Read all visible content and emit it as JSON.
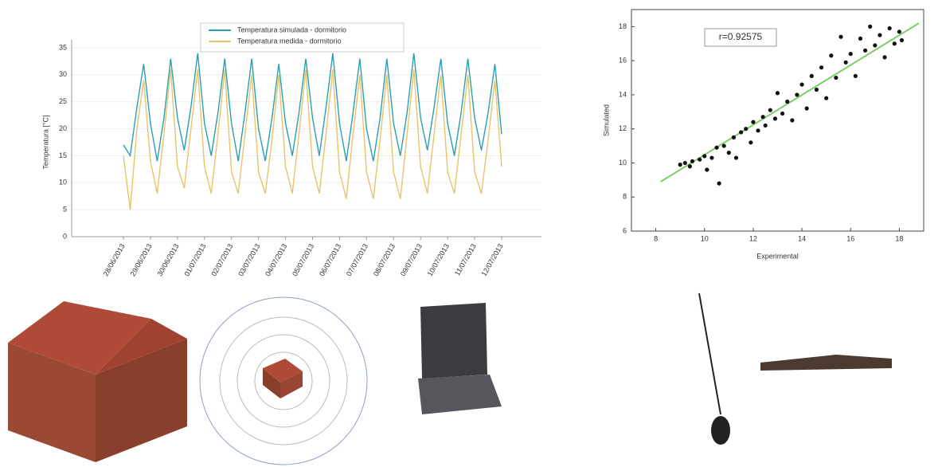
{
  "chart_data": [
    {
      "type": "line",
      "ylabel": "Temperatura [°C]",
      "ylim": [
        0,
        35
      ],
      "yticks": [
        0,
        5,
        10,
        15,
        20,
        25,
        30,
        35
      ],
      "grid": true,
      "categories": [
        "28/06/2013",
        null,
        null,
        null,
        "29/06/2013",
        null,
        null,
        null,
        "30/06/2013",
        null,
        null,
        null,
        "01/07/2013",
        null,
        null,
        null,
        "02/07/2013",
        null,
        null,
        null,
        "03/07/2013",
        null,
        null,
        null,
        "04/07/2013",
        null,
        null,
        null,
        "05/07/2013",
        null,
        null,
        null,
        "06/07/2013",
        null,
        null,
        null,
        "07/07/2013",
        null,
        null,
        null,
        "08/07/2013",
        null,
        null,
        null,
        "09/07/2013",
        null,
        null,
        null,
        "10/07/2013",
        null,
        null,
        null,
        "11/07/2013",
        null,
        null,
        null,
        "12/07/2013"
      ],
      "series": [
        {
          "name": "Temperatura simulada - dormitorio",
          "color": "#2a9fb0",
          "values": [
            17,
            15,
            24,
            32,
            21,
            14,
            22,
            33,
            22,
            16,
            24,
            34,
            21,
            15,
            23,
            33,
            21,
            14,
            23,
            33,
            20,
            14,
            22,
            32,
            21,
            15,
            23,
            33,
            22,
            15,
            24,
            34,
            21,
            14,
            23,
            33,
            20,
            14,
            22,
            33,
            21,
            15,
            23,
            34,
            22,
            16,
            24,
            33,
            21,
            15,
            23,
            33,
            22,
            16,
            23,
            32,
            19
          ]
        },
        {
          "name": "Temperatura medida - dormitorio",
          "color": "#e8c36a",
          "values": [
            15,
            5,
            20,
            29,
            14,
            8,
            19,
            31,
            13,
            9,
            20,
            31,
            13,
            8,
            19,
            31,
            12,
            8,
            19,
            30,
            12,
            8,
            18,
            30,
            13,
            8,
            19,
            31,
            13,
            8,
            19,
            31,
            12,
            7,
            19,
            30,
            12,
            7,
            18,
            30,
            12,
            7,
            19,
            31,
            13,
            8,
            19,
            30,
            12,
            8,
            19,
            30,
            12,
            8,
            18,
            29,
            13
          ]
        }
      ]
    },
    {
      "type": "scatter",
      "xlabel": "Experimental",
      "ylabel": "Simulated",
      "annotation": "r=0.92575",
      "color": "#111",
      "xlim": [
        7,
        19
      ],
      "xticks": [
        8,
        10,
        12,
        14,
        16,
        18
      ],
      "ylim": [
        6,
        19
      ],
      "yticks": [
        6,
        8,
        10,
        12,
        14,
        16,
        18
      ],
      "trendline": {
        "color": "#7ccf6a",
        "x": [
          8.2,
          18.8
        ],
        "y": [
          8.9,
          18.2
        ]
      },
      "x": [
        9.0,
        9.2,
        9.4,
        9.5,
        9.8,
        10.0,
        10.1,
        10.3,
        10.5,
        10.6,
        10.8,
        11.0,
        11.2,
        11.3,
        11.5,
        11.7,
        11.9,
        12.0,
        12.2,
        12.4,
        12.5,
        12.7,
        12.9,
        13.0,
        13.2,
        13.4,
        13.6,
        13.8,
        14.0,
        14.2,
        14.4,
        14.6,
        14.8,
        15.0,
        15.2,
        15.4,
        15.6,
        15.8,
        16.0,
        16.2,
        16.4,
        16.6,
        16.8,
        17.0,
        17.2,
        17.4,
        17.6,
        17.8,
        18.0,
        18.1
      ],
      "y": [
        9.9,
        10.0,
        9.8,
        10.1,
        10.2,
        10.4,
        9.6,
        10.3,
        10.9,
        8.8,
        11.0,
        10.6,
        11.5,
        10.3,
        11.8,
        12.0,
        11.2,
        12.4,
        11.9,
        12.7,
        12.2,
        13.1,
        12.6,
        14.1,
        12.9,
        13.6,
        12.5,
        14.0,
        14.6,
        13.2,
        15.1,
        14.3,
        15.6,
        13.8,
        16.3,
        15.0,
        17.4,
        15.9,
        16.4,
        15.1,
        17.3,
        16.6,
        18.0,
        16.9,
        17.5,
        16.2,
        17.9,
        17.0,
        17.7,
        17.2
      ]
    }
  ]
}
